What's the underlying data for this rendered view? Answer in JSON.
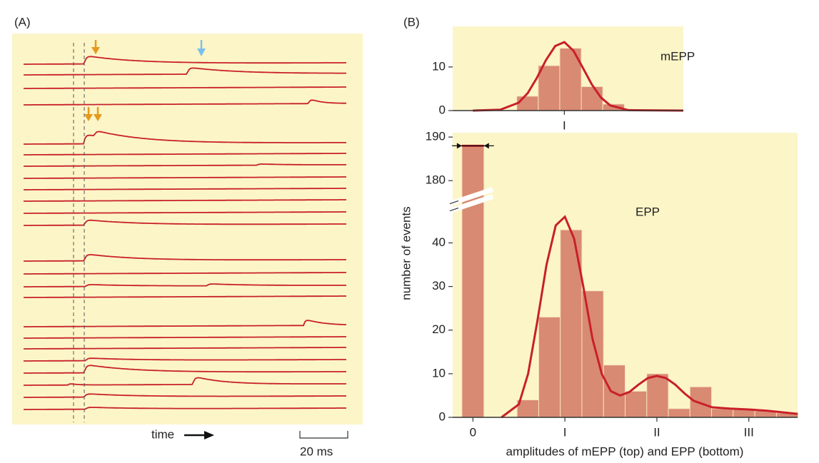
{
  "chart_data": [
    {
      "type": "traces",
      "panel_label": "(A)",
      "x_label": "time",
      "scale_bar_label": "20 ms"
    },
    {
      "type": "histogram",
      "panel_label": "(B)",
      "annotation": "mEPP",
      "bins": [
        0.48,
        0.715,
        0.95,
        1.185,
        1.42,
        1.655
      ],
      "counts": [
        3.3,
        10.3,
        14.3,
        5.5,
        1.5
      ],
      "fit": {
        "x": [
          0,
          0.3,
          0.5,
          0.6,
          0.7,
          0.8,
          0.9,
          1.0,
          1.1,
          1.2,
          1.3,
          1.4,
          1.5,
          1.7,
          2.3
        ],
        "y": [
          0,
          0.2,
          1.8,
          4.0,
          7.5,
          11.6,
          14.8,
          15.7,
          13.7,
          9.9,
          6.0,
          3.0,
          1.2,
          0.1,
          0
        ]
      },
      "xlim": [
        -0.22,
        2.3
      ],
      "xticks": [
        {
          "value": 1,
          "label": "I"
        }
      ],
      "ylim": [
        0,
        19.3
      ],
      "yticks": [
        0,
        10
      ],
      "bar_color": "#d98a72",
      "fit_color": "#c8202a"
    },
    {
      "type": "histogram",
      "annotation": "EPP",
      "x_label": "amplitudes of mEPP (top) and EPP (bottom)",
      "y_label": "number of events",
      "bins": [
        -0.12,
        0.12,
        0.48,
        0.715,
        0.95,
        1.185,
        1.42,
        1.655,
        1.89,
        2.125,
        2.36,
        2.595,
        2.83,
        3.065,
        3.3,
        3.535
      ],
      "counts": [
        188,
        0,
        4,
        23,
        43,
        29,
        12,
        6,
        10,
        2,
        7,
        2,
        2,
        1.5,
        1
      ],
      "fit": {
        "x": [
          0.31,
          0.5,
          0.6,
          0.7,
          0.8,
          0.9,
          1.0,
          1.1,
          1.2,
          1.3,
          1.4,
          1.5,
          1.6,
          1.7,
          1.8,
          1.9,
          2.0,
          2.1,
          2.2,
          2.3,
          2.4,
          2.6,
          2.8,
          3.0,
          3.2,
          3.53
        ],
        "y": [
          0,
          3,
          10,
          22,
          35,
          44,
          46,
          41,
          30,
          18,
          10,
          6,
          5,
          5.8,
          7.5,
          9,
          9.5,
          9,
          7.5,
          5.5,
          3.8,
          2.3,
          2,
          1.8,
          1.5,
          0.8
        ]
      },
      "xlim": [
        -0.22,
        3.53
      ],
      "xticks": [
        0,
        {
          "value": 1,
          "label": "I"
        },
        {
          "value": 2,
          "label": "II"
        },
        {
          "value": 3,
          "label": "III"
        }
      ],
      "ylim": [
        0,
        191
      ],
      "ybreak": [
        48,
        177
      ],
      "yticks": [
        0,
        10,
        20,
        30,
        40,
        180,
        190
      ],
      "bar_color": "#d98a72",
      "fit_color": "#c8202a"
    }
  ]
}
